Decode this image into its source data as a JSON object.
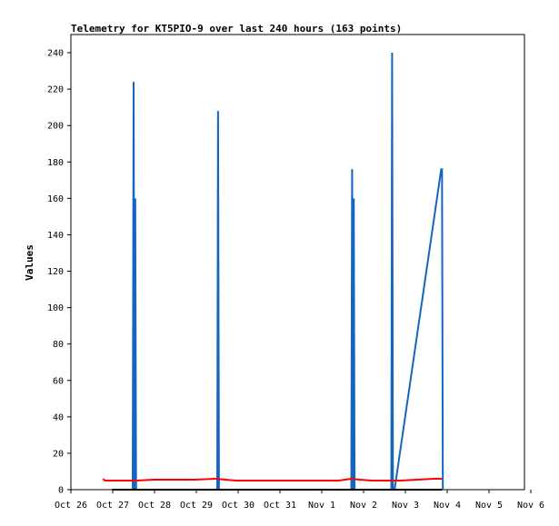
{
  "chart_data": {
    "type": "line",
    "title": "Telemetry for KT5PIO-9 over last 240 hours (163 points)",
    "xlabel": "",
    "ylabel": "Values",
    "xlim": [
      "Oct 26",
      "Nov 6"
    ],
    "ylim": [
      0,
      250
    ],
    "x_ticks": [
      "Oct 26",
      "Oct 27",
      "Oct 28",
      "Oct 29",
      "Oct 30",
      "Oct 31",
      "Nov 1",
      "Nov 2",
      "Nov 3",
      "Nov 4",
      "Nov 5",
      "Nov 6"
    ],
    "y_ticks": [
      0,
      20,
      40,
      60,
      80,
      100,
      120,
      140,
      160,
      180,
      200,
      220,
      240
    ],
    "grid": false,
    "legend": "none",
    "colors": {
      "series_red": "#ff0000",
      "series_blue": "#1565c0",
      "series_black": "#000000"
    },
    "series": [
      {
        "color": "#1565c0",
        "x": [
          27.5,
          27.52,
          27.54,
          27.56,
          27.58,
          29.55,
          29.57,
          29.59,
          32.8,
          32.82,
          32.84,
          32.86,
          32.88,
          32.9,
          33.77,
          33.79,
          33.81,
          33.85,
          34.98,
          35.0,
          35.02
        ],
        "y": [
          0,
          224,
          0,
          160,
          0,
          0,
          208,
          0,
          0,
          176,
          0,
          160,
          0,
          0,
          0,
          240,
          0,
          0,
          176,
          176,
          0
        ]
      },
      {
        "color": "#ff0000",
        "x": [
          26.78,
          26.82,
          26.9,
          27.3,
          27.6,
          28.0,
          28.5,
          29.0,
          29.5,
          30.0,
          30.5,
          31.0,
          31.5,
          32.0,
          32.5,
          32.8,
          33.0,
          33.3,
          33.6,
          33.8,
          34.0,
          34.4,
          34.8,
          35.0
        ],
        "y": [
          6,
          5,
          5,
          5,
          5,
          5.5,
          5.5,
          5.5,
          6,
          5,
          5,
          5,
          5,
          5,
          5,
          6,
          5.5,
          5,
          5,
          5,
          5,
          5.5,
          6,
          6
        ]
      },
      {
        "color": "#000000",
        "x": [
          27.0,
          35.0
        ],
        "y": [
          0,
          0
        ]
      }
    ]
  }
}
